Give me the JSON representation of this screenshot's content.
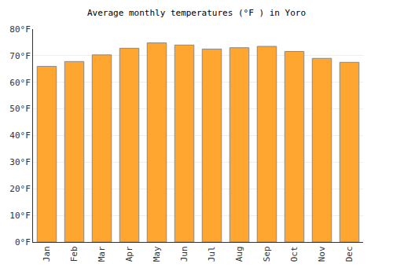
{
  "chart_data": {
    "type": "bar",
    "title": "Average monthly temperatures (°F ) in Yoro",
    "categories": [
      "Jan",
      "Feb",
      "Mar",
      "Apr",
      "May",
      "Jun",
      "Jul",
      "Aug",
      "Sep",
      "Oct",
      "Nov",
      "Dec"
    ],
    "values": [
      66,
      67.8,
      70.3,
      72.8,
      74.8,
      74,
      72.5,
      73,
      73.5,
      71.6,
      69,
      67.5
    ],
    "color": "#ffa630",
    "ylim": [
      0,
      80
    ],
    "yticks": [
      {
        "value": 0,
        "label": "0°F"
      },
      {
        "value": 10,
        "label": "10°F"
      },
      {
        "value": 20,
        "label": "20°F"
      },
      {
        "value": 30,
        "label": "30°F"
      },
      {
        "value": 40,
        "label": "40°F"
      },
      {
        "value": 50,
        "label": "50°F"
      },
      {
        "value": 60,
        "label": "60°F"
      },
      {
        "value": 70,
        "label": "70°F"
      },
      {
        "value": 80,
        "label": "80°F"
      }
    ],
    "grid": true
  }
}
